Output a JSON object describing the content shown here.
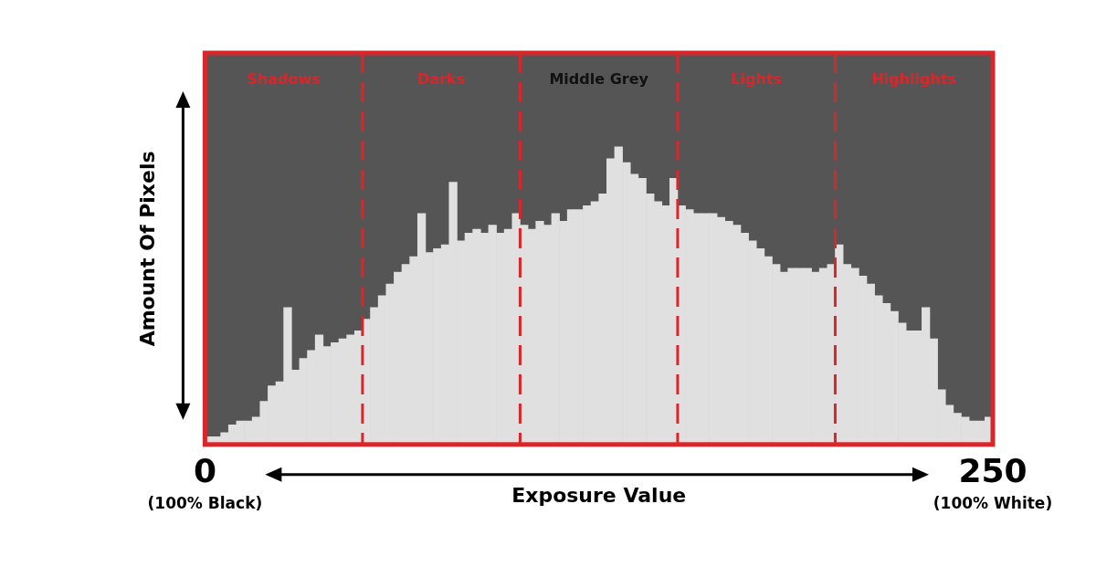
{
  "chart_data": {
    "type": "histogram",
    "x_label": "Exposure Value",
    "y_label": "Amount Of Pixels",
    "bins": [
      0,
      2.5,
      5,
      7.5,
      10,
      12.5,
      15,
      17.5,
      20,
      22.5,
      25,
      27.5,
      30,
      32.5,
      35,
      37.5,
      40,
      42.5,
      45,
      47.5,
      50,
      52.5,
      55,
      57.5,
      60,
      62.5,
      65,
      67.5,
      70,
      72.5,
      75,
      77.5,
      80,
      82.5,
      85,
      87.5,
      90,
      92.5,
      95,
      97.5,
      100,
      102.5,
      105,
      107.5,
      110,
      112.5,
      115,
      117.5,
      120,
      122.5,
      125,
      127.5,
      130,
      132.5,
      135,
      137.5,
      140,
      142.5,
      145,
      147.5,
      150,
      152.5,
      155,
      157.5,
      160,
      162.5,
      165,
      167.5,
      170,
      172.5,
      175,
      177.5,
      180,
      182.5,
      185,
      187.5,
      190,
      192.5,
      195,
      197.5,
      200,
      202.5,
      205,
      207.5,
      210,
      212.5,
      215,
      217.5,
      220,
      222.5,
      225,
      227.5,
      230,
      232.5,
      235,
      237.5,
      240,
      242.5,
      245,
      247.5,
      250
    ],
    "values": [
      2,
      2,
      3,
      5,
      6,
      6,
      7,
      11,
      15,
      16,
      35,
      19,
      22,
      24,
      28,
      25,
      26,
      27,
      28,
      29,
      32,
      35,
      38,
      41,
      44,
      46,
      48,
      59,
      49,
      50,
      51,
      67,
      52,
      54,
      55,
      54,
      56,
      54,
      55,
      59,
      56,
      55,
      57,
      56,
      59,
      57,
      60,
      60,
      61,
      62,
      64,
      73,
      76,
      72,
      69,
      68,
      64,
      62,
      61,
      68,
      61,
      60,
      59,
      59,
      59,
      58,
      57,
      56,
      54,
      52,
      50,
      48,
      46,
      44,
      45,
      45,
      45,
      44,
      45,
      46,
      51,
      46,
      45,
      43,
      41,
      38,
      36,
      34,
      31,
      29,
      29,
      35,
      27,
      14,
      10,
      8,
      7,
      6,
      6,
      7
    ],
    "color": "#e0e0e0",
    "xlim": [
      0,
      250
    ],
    "xticks": [
      0,
      250
    ],
    "ylim": [
      0,
      100
    ],
    "tick_labels": "x",
    "grid": false,
    "annotations": [
      {
        "x": 0,
        "text": "(100% Black)"
      },
      {
        "x": 250,
        "text": "(100% White)"
      }
    ],
    "zones": [
      {
        "label": "Shadows",
        "start": 0,
        "end": 50,
        "color": "#d9262b"
      },
      {
        "label": "Darks",
        "start": 50,
        "end": 100,
        "color": "#d9262b"
      },
      {
        "label": "Middle Grey",
        "start": 100,
        "end": 150,
        "color": "#111111"
      },
      {
        "label": "Lights",
        "start": 150,
        "end": 200,
        "color": "#d9262b"
      },
      {
        "label": "Highlights",
        "start": 200,
        "end": 250,
        "color": "#d9262b"
      }
    ]
  }
}
